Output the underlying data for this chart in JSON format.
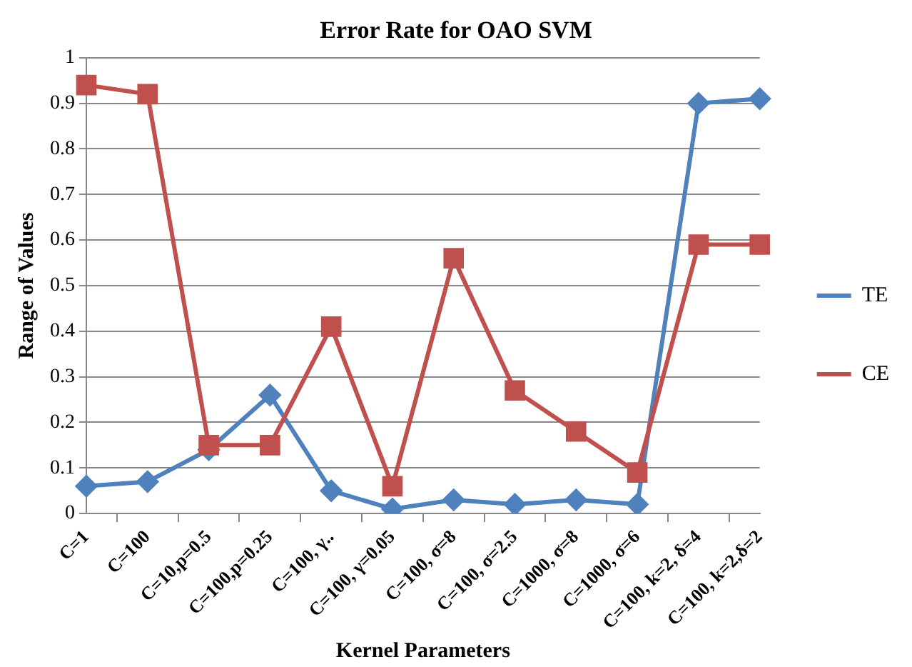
{
  "chart_data": {
    "type": "line",
    "title": "Error Rate for OAO SVM",
    "xlabel": "Kernel Parameters",
    "ylabel": "Range of Values",
    "categories": [
      "C=1",
      "C=100",
      "C=10,p=0.5",
      "C=100,p=0.25",
      "C=100, γ..",
      "C=100, γ=0.05",
      "C=100, σ=8",
      "C=100, σ=2.5",
      "C=1000, σ=8",
      "C=1000, σ=6",
      "C=100, k=2, δ=4",
      "C=100, k=2,δ=2"
    ],
    "series": [
      {
        "name": "TE",
        "color": "#4f81bd",
        "marker": "diamond",
        "values": [
          0.06,
          0.07,
          0.14,
          0.26,
          0.05,
          0.01,
          0.03,
          0.02,
          0.03,
          0.02,
          0.9,
          0.91
        ]
      },
      {
        "name": "CE",
        "color": "#c0504d",
        "marker": "square",
        "values": [
          0.94,
          0.92,
          0.15,
          0.15,
          0.41,
          0.06,
          0.56,
          0.27,
          0.18,
          0.09,
          0.59,
          0.59
        ]
      }
    ],
    "ylim": [
      0,
      1
    ],
    "yticks": [
      0,
      0.1,
      0.2,
      0.3,
      0.4,
      0.5,
      0.6,
      0.7,
      0.8,
      0.9,
      1
    ],
    "grid": "y",
    "legend": "right"
  }
}
